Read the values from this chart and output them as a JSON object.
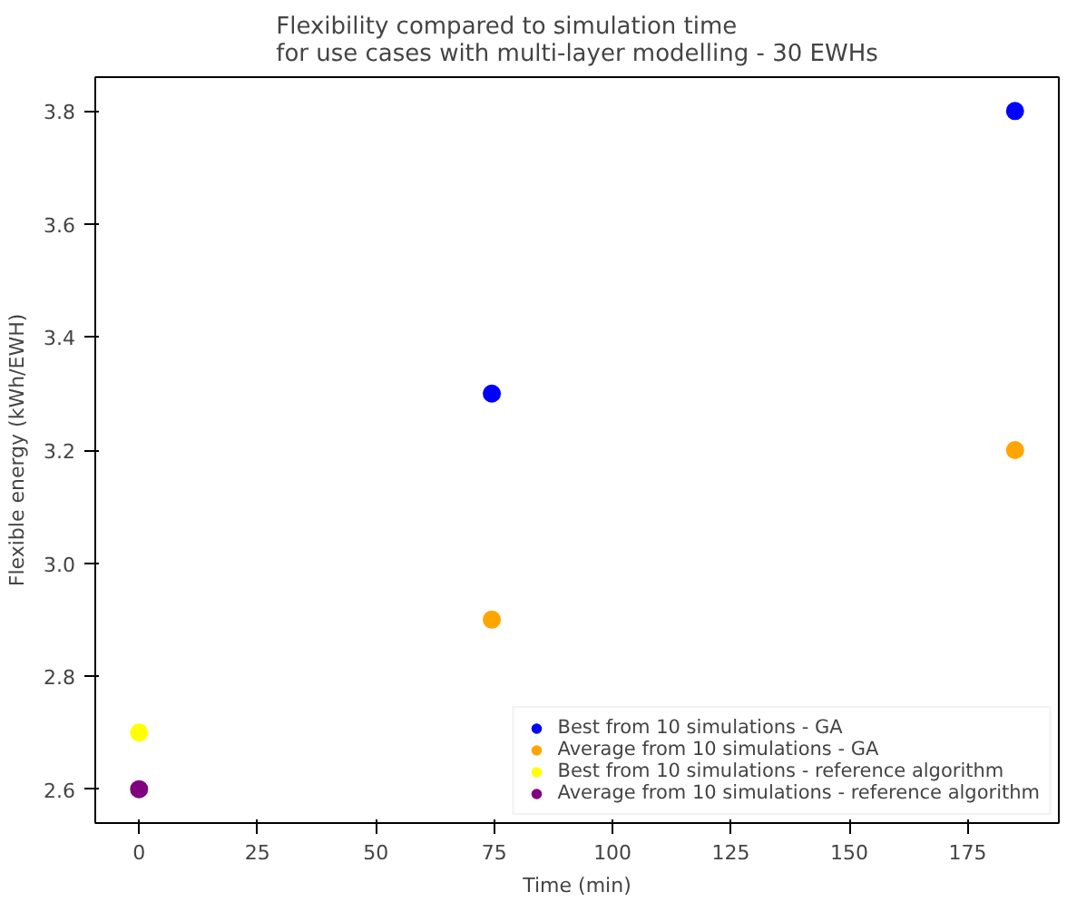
{
  "chart_data": {
    "type": "scatter",
    "title": "Flexibility compared to simulation time\nfor use cases with multi-layer modelling - 30 EWHs",
    "xlabel": "Time (min)",
    "ylabel": "Flexible energy (kWh/EWH)",
    "series": [
      {
        "name": "Best from 10 simulations - GA",
        "color": "#0000ff",
        "x": [
          74.5,
          185
        ],
        "values": [
          3.3,
          3.8
        ]
      },
      {
        "name": "Average from 10 simulations - GA",
        "color": "#ffa500",
        "x": [
          74.5,
          185
        ],
        "values": [
          2.9,
          3.2
        ]
      },
      {
        "name": "Best from 10 simulations - reference algorithm",
        "color": "#ffff00",
        "x": [
          0
        ],
        "values": [
          2.7
        ]
      },
      {
        "name": "Average from 10 simulations - reference algorithm",
        "color": "#800080",
        "x": [
          0
        ],
        "values": [
          2.6
        ]
      }
    ],
    "xlim": [
      -9.25,
      194.25
    ],
    "ylim": [
      2.54,
      3.86
    ],
    "xticks": [
      0,
      25,
      50,
      75,
      100,
      125,
      150,
      175
    ],
    "yticks": [
      2.6,
      2.8,
      {
        "value": 3,
        "label": "3.0"
      },
      3.2,
      3.4,
      3.6,
      3.8
    ],
    "grid": false,
    "legend": "bottom right",
    "marker": "circle"
  }
}
